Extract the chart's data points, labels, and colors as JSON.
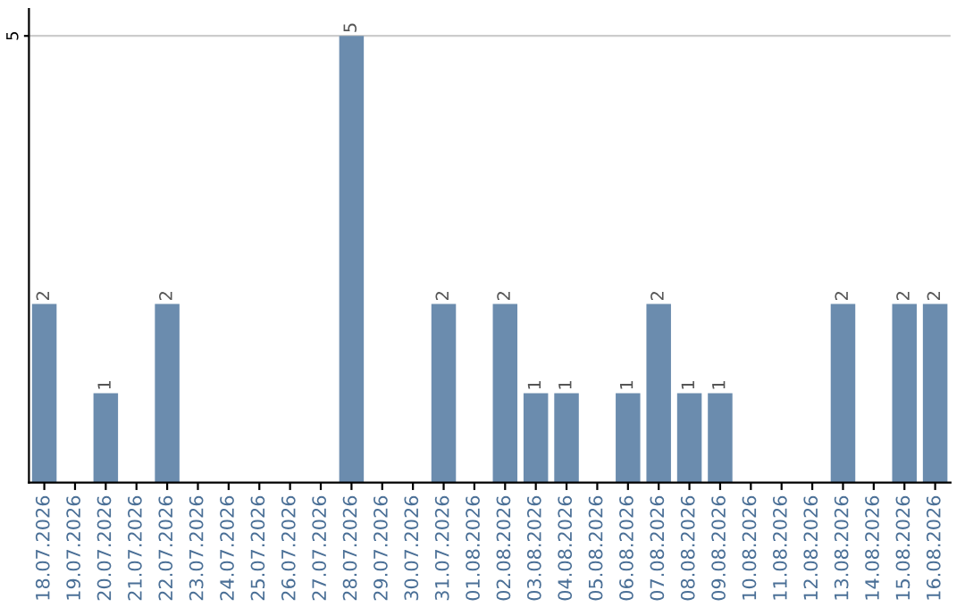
{
  "chart_data": {
    "type": "bar",
    "categories": [
      "18.07.2026",
      "19.07.2026",
      "20.07.2026",
      "21.07.2026",
      "22.07.2026",
      "23.07.2026",
      "24.07.2026",
      "25.07.2026",
      "26.07.2026",
      "27.07.2026",
      "28.07.2026",
      "29.07.2026",
      "30.07.2026",
      "31.07.2026",
      "01.08.2026",
      "02.08.2026",
      "03.08.2026",
      "04.08.2026",
      "05.08.2026",
      "06.08.2026",
      "07.08.2026",
      "08.08.2026",
      "09.08.2026",
      "10.08.2026",
      "11.08.2026",
      "12.08.2026",
      "13.08.2026",
      "14.08.2026",
      "15.08.2026",
      "16.08.2026"
    ],
    "values": [
      2,
      0,
      1,
      0,
      2,
      0,
      0,
      0,
      0,
      0,
      5,
      0,
      0,
      2,
      0,
      2,
      1,
      1,
      0,
      1,
      2,
      1,
      1,
      0,
      0,
      0,
      2,
      0,
      2,
      2
    ],
    "value_labels": [
      "2",
      null,
      "1",
      null,
      "2",
      null,
      null,
      null,
      null,
      null,
      "5",
      null,
      null,
      "2",
      null,
      "2",
      "1",
      "1",
      null,
      "1",
      "2",
      "1",
      "1",
      null,
      null,
      null,
      "2",
      null,
      "2",
      "2"
    ],
    "color": "#6b8cae",
    "ylim": [
      0,
      5.3
    ],
    "yticks": [
      5
    ],
    "grid": "y"
  }
}
